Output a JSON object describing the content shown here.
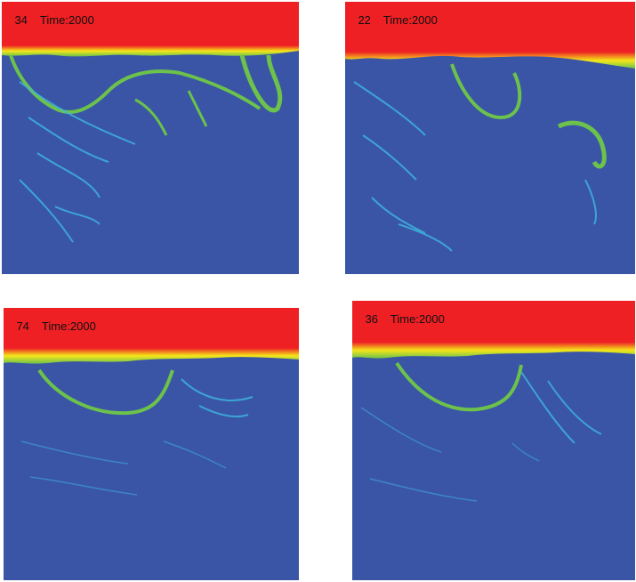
{
  "panels": [
    {
      "index_label": "34",
      "time_label": "Time:2000"
    },
    {
      "index_label": "22",
      "time_label": "Time:2000"
    },
    {
      "index_label": "74",
      "time_label": "Time:2000"
    },
    {
      "index_label": "36",
      "time_label": "Time:2000"
    }
  ],
  "colors": {
    "background_fluid": "#3a55a6",
    "hot_fluid": "#ee2024",
    "interface_yellow": "#f5e61a",
    "interface_green": "#6cc24a",
    "plume_cyan": "#3fb8e0"
  }
}
